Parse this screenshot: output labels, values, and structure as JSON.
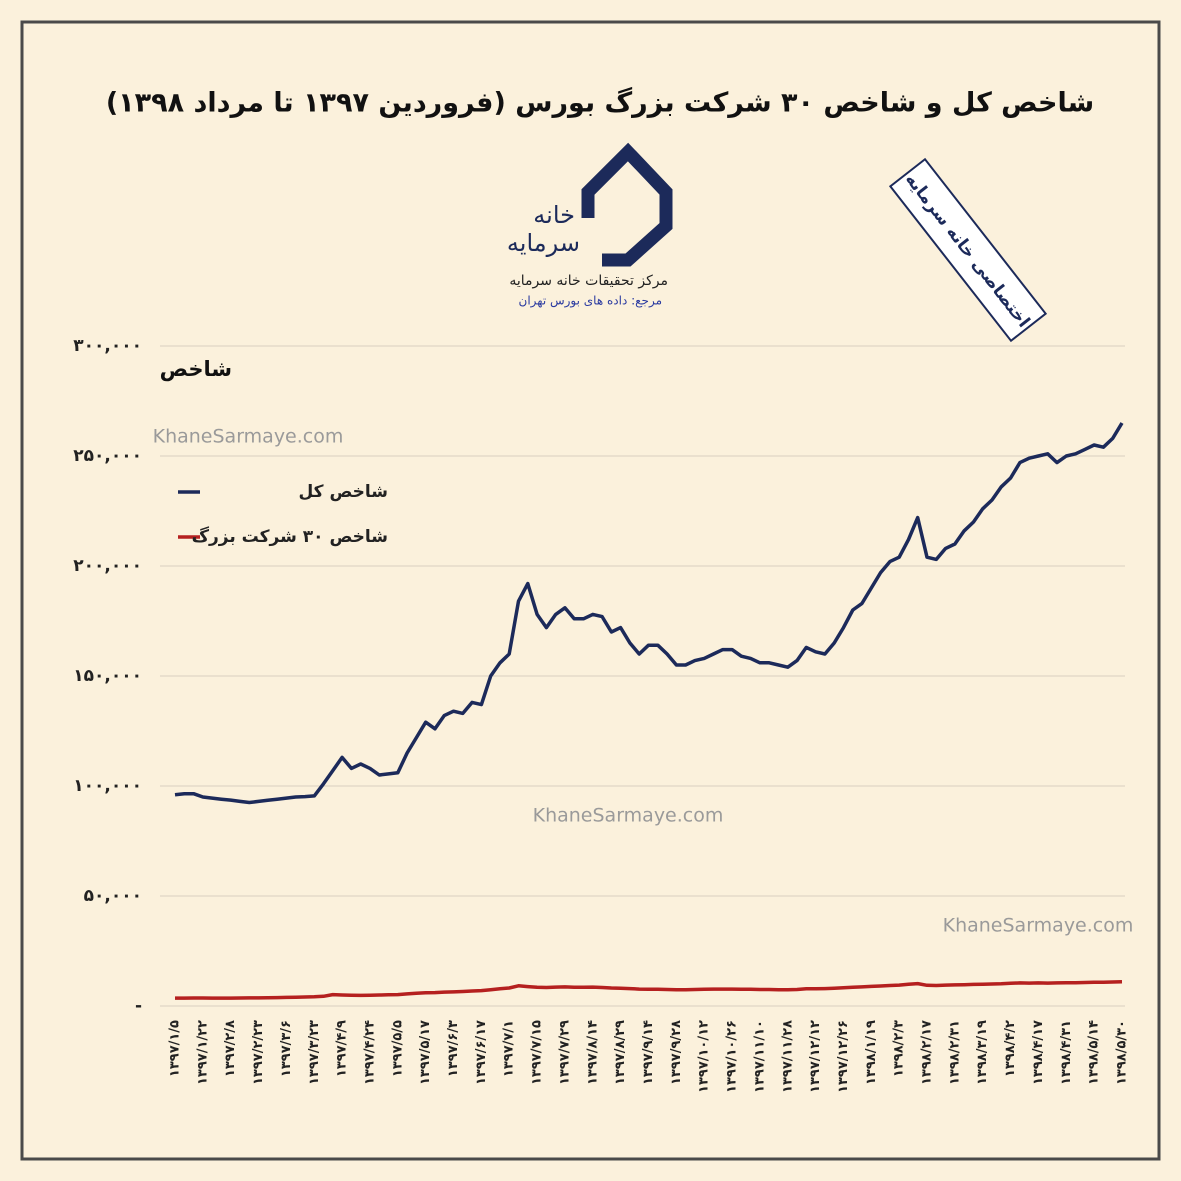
{
  "chart_data": {
    "type": "line",
    "title": "شاخص کل و شاخص ۳۰ شرکت بزرگ بورس (فروردین ۱۳۹۷ تا مرداد ۱۳۹۸)",
    "y_label": "شاخص",
    "logo_text": [
      "خانه",
      "سرمایه"
    ],
    "organization": "مرکز تحقیقات خانه سرمایه",
    "source": "مرجع: داده های بورس تهران",
    "stamp": "اختصاصی خانه سرمایه",
    "watermarks": [
      "KhaneSarmaye.com",
      "KhaneSarmaye.com",
      "KhaneSarmaye.com"
    ],
    "categories": [
      "۱۳۹۷/۱/۵",
      null,
      null,
      "۱۳۹۷/۱/۲۲",
      null,
      null,
      "۱۳۹۷/۲/۸",
      null,
      null,
      "۱۳۹۷/۲/۲۳",
      null,
      null,
      "۱۳۹۷/۳/۶",
      null,
      null,
      "۱۳۹۷/۳/۲۳",
      null,
      null,
      "۱۳۹۷/۴/۹",
      null,
      null,
      "۱۳۹۷/۴/۲۴",
      null,
      null,
      "۱۳۹۷/۵/۵",
      null,
      null,
      "۱۳۹۷/۵/۱۷",
      null,
      null,
      "۱۳۹۷/۶/۳",
      null,
      null,
      "۱۳۹۷/۶/۱۷",
      null,
      null,
      "۱۳۹۷/۷/۱",
      null,
      null,
      "۱۳۹۷/۷/۱۵",
      null,
      null,
      "۱۳۹۷/۷/۲۹",
      null,
      null,
      "۱۳۹۷/۸/۱۴",
      null,
      null,
      "۱۳۹۷/۸/۲۹",
      null,
      null,
      "۱۳۹۷/۹/۱۴",
      null,
      null,
      "۱۳۹۷/۹/۲۸",
      null,
      null,
      "۱۳۹۷/۱۰/۱۲",
      null,
      null,
      "۱۳۹۷/۱۰/۲۶",
      null,
      null,
      "۱۳۹۷/۱۱/۱۰",
      null,
      null,
      "۱۳۹۷/۱۱/۲۸",
      null,
      null,
      "۱۳۹۷/۱۲/۱۲",
      null,
      null,
      "۱۳۹۷/۱۲/۲۶",
      null,
      null,
      "۱۳۹۸/۱/۱۹",
      null,
      null,
      "۱۳۹۸/۲/۳",
      null,
      null,
      "۱۳۹۸/۲/۱۷",
      null,
      null,
      "۱۳۹۸/۲/۳۱",
      null,
      null,
      "۱۳۹۸/۳/۱۹",
      null,
      null,
      "۱۳۹۸/۴/۲",
      null,
      null,
      "۱۳۹۸/۴/۱۷",
      null,
      null,
      "۱۳۹۸/۴/۳۱",
      null,
      null,
      "۱۳۹۸/۵/۱۴",
      null,
      null,
      "۱۳۹۸/۵/۳۰"
    ],
    "series": [
      {
        "name": "شاخص کل",
        "color": "#1c2a5a",
        "values": [
          96000,
          96500,
          96500,
          95000,
          94500,
          94000,
          93600,
          93000,
          92500,
          93000,
          93500,
          94000,
          94500,
          95000,
          95200,
          95500,
          101000,
          107000,
          113000,
          108000,
          110000,
          108000,
          105000,
          105500,
          106000,
          115000,
          122000,
          129000,
          126000,
          132000,
          134000,
          133000,
          138000,
          137000,
          150000,
          156000,
          160000,
          184000,
          192000,
          178000,
          172000,
          178000,
          181000,
          176000,
          176000,
          178000,
          177000,
          170000,
          172000,
          165000,
          160000,
          164000,
          164000,
          160000,
          155000,
          155000,
          157000,
          158000,
          160000,
          162000,
          162000,
          159000,
          158000,
          156000,
          156000,
          155000,
          154000,
          157000,
          163000,
          161000,
          160000,
          165000,
          172000,
          180000,
          183000,
          190000,
          197000,
          202000,
          204000,
          212000,
          222000,
          204000,
          203000,
          208000,
          210000,
          216000,
          220000,
          226000,
          230000,
          236000,
          240000,
          247000,
          249000,
          250000,
          251000,
          247000,
          250000,
          251000,
          253000,
          255000,
          254000,
          258000,
          265000
        ]
      },
      {
        "name": "شاخص ۳۰ شرکت بزرگ",
        "color": "#b5201f",
        "values": [
          3600,
          3600,
          3650,
          3650,
          3600,
          3600,
          3600,
          3650,
          3700,
          3700,
          3750,
          3800,
          3900,
          4000,
          4100,
          4200,
          4400,
          5200,
          5000,
          4900,
          4800,
          4900,
          5000,
          5100,
          5200,
          5500,
          5800,
          6000,
          6100,
          6300,
          6400,
          6600,
          6800,
          7000,
          7400,
          7800,
          8200,
          9200,
          8800,
          8500,
          8400,
          8600,
          8700,
          8500,
          8500,
          8600,
          8400,
          8200,
          8100,
          7900,
          7700,
          7600,
          7600,
          7500,
          7400,
          7400,
          7500,
          7600,
          7700,
          7700,
          7700,
          7600,
          7600,
          7500,
          7500,
          7400,
          7400,
          7500,
          7800,
          7800,
          7900,
          8100,
          8300,
          8500,
          8700,
          8900,
          9100,
          9300,
          9500,
          9900,
          10200,
          9400,
          9300,
          9500,
          9600,
          9700,
          9800,
          9900,
          10000,
          10100,
          10300,
          10500,
          10400,
          10500,
          10400,
          10500,
          10600,
          10600,
          10700,
          10800,
          10800,
          10900,
          11000
        ]
      }
    ],
    "ylim": [
      0,
      300000
    ],
    "yticks": [
      {
        "value": 0,
        "label": "-"
      },
      {
        "value": 50000,
        "label": "۵۰,۰۰۰"
      },
      {
        "value": 100000,
        "label": "۱۰۰,۰۰۰"
      },
      {
        "value": 150000,
        "label": "۱۵۰,۰۰۰"
      },
      {
        "value": 200000,
        "label": "۲۰۰,۰۰۰"
      },
      {
        "value": 250000,
        "label": "۲۵۰,۰۰۰"
      },
      {
        "value": 300000,
        "label": "۳۰۰,۰۰۰"
      }
    ],
    "grid": true,
    "legend": "upper-left"
  }
}
